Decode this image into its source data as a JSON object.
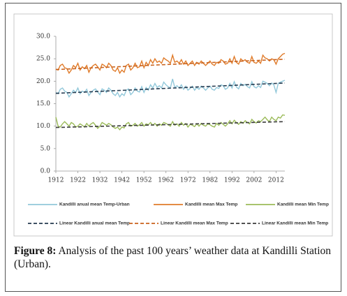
{
  "chart_data": {
    "type": "line",
    "x": [
      1912,
      1913,
      1914,
      1915,
      1916,
      1917,
      1918,
      1919,
      1920,
      1921,
      1922,
      1923,
      1924,
      1925,
      1926,
      1927,
      1928,
      1929,
      1930,
      1931,
      1932,
      1933,
      1934,
      1935,
      1936,
      1937,
      1938,
      1939,
      1940,
      1941,
      1942,
      1943,
      1944,
      1945,
      1946,
      1947,
      1948,
      1949,
      1950,
      1951,
      1952,
      1953,
      1954,
      1955,
      1956,
      1957,
      1958,
      1959,
      1960,
      1961,
      1962,
      1963,
      1964,
      1965,
      1966,
      1967,
      1968,
      1969,
      1970,
      1971,
      1972,
      1973,
      1974,
      1975,
      1976,
      1977,
      1978,
      1979,
      1980,
      1981,
      1982,
      1983,
      1984,
      1985,
      1986,
      1987,
      1988,
      1989,
      1990,
      1991,
      1992,
      1993,
      1994,
      1995,
      1996,
      1997,
      1998,
      1999,
      2000,
      2001,
      2002,
      2003,
      2004,
      2005,
      2006,
      2007,
      2008,
      2009,
      2010,
      2011,
      2012,
      2013,
      2014,
      2015,
      2016
    ],
    "series": [
      {
        "name": "Kandilli anual mean Temp-Urban",
        "color": "#92c8da",
        "values": [
          17.5,
          17.2,
          18.2,
          18.5,
          17.8,
          17.5,
          16.5,
          17.2,
          18.0,
          17.5,
          18.5,
          17.2,
          17.8,
          17.5,
          18.2,
          16.8,
          17.5,
          18.0,
          18.3,
          17.6,
          17.0,
          18.3,
          18.0,
          17.5,
          18.5,
          18.0,
          17.2,
          16.8,
          17.5,
          16.5,
          17.2,
          16.8,
          18.0,
          18.3,
          17.0,
          17.5,
          18.5,
          17.8,
          17.6,
          18.8,
          17.5,
          18.6,
          18.0,
          19.2,
          18.5,
          19.5,
          18.6,
          19.0,
          18.5,
          19.8,
          19.2,
          18.8,
          18.5,
          20.5,
          18.6,
          19.0,
          18.5,
          19.2,
          18.2,
          18.9,
          18.0,
          18.4,
          18.9,
          18.0,
          18.6,
          18.2,
          18.9,
          18.5,
          18.0,
          18.5,
          18.9,
          18.2,
          18.0,
          18.6,
          18.4,
          19.2,
          19.0,
          18.2,
          18.5,
          19.5,
          18.5,
          19.9,
          18.7,
          18.3,
          19.5,
          19.0,
          19.3,
          18.8,
          18.5,
          19.9,
          18.8,
          18.5,
          19.0,
          18.6,
          20.0,
          19.8,
          19.5,
          19.0,
          19.6,
          19.2,
          17.5,
          19.5,
          19.8,
          20.0,
          20.2
        ]
      },
      {
        "name": "Kandilli mean Max Temp",
        "color": "#e07b2a",
        "values": [
          22.7,
          22.5,
          23.5,
          23.8,
          23.0,
          22.8,
          21.8,
          22.5,
          23.5,
          23.0,
          24.0,
          22.5,
          23.2,
          22.8,
          23.5,
          22.0,
          23.0,
          23.5,
          23.8,
          23.2,
          22.5,
          23.8,
          23.5,
          23.0,
          24.0,
          23.5,
          22.5,
          22.2,
          23.0,
          21.8,
          22.5,
          22.0,
          23.5,
          23.8,
          22.5,
          23.0,
          24.0,
          23.0,
          23.2,
          24.5,
          23.0,
          24.2,
          23.5,
          24.8,
          24.0,
          25.0,
          24.2,
          24.5,
          24.0,
          25.2,
          24.8,
          24.5,
          24.0,
          25.8,
          24.2,
          24.5,
          24.0,
          24.8,
          23.8,
          24.5,
          23.5,
          24.0,
          24.5,
          23.5,
          24.2,
          23.8,
          24.5,
          24.0,
          23.5,
          24.0,
          24.5,
          23.8,
          23.5,
          24.2,
          24.0,
          24.8,
          24.5,
          23.8,
          24.0,
          25.0,
          24.0,
          25.5,
          24.2,
          23.8,
          25.0,
          24.5,
          24.8,
          24.2,
          24.0,
          25.5,
          24.2,
          24.0,
          24.5,
          24.0,
          25.8,
          25.2,
          25.0,
          24.5,
          25.0,
          24.8,
          23.8,
          25.0,
          25.5,
          26.0,
          26.2
        ]
      },
      {
        "name": "Kandilli mean Min Temp",
        "color": "#9bbb59",
        "values": [
          12.0,
          10.0,
          9.8,
          10.5,
          11.0,
          10.5,
          10.0,
          10.8,
          10.5,
          9.8,
          10.0,
          10.5,
          10.2,
          9.8,
          10.6,
          10.0,
          10.5,
          10.8,
          10.2,
          9.5,
          10.0,
          10.8,
          10.5,
          10.2,
          10.6,
          10.3,
          9.8,
          9.5,
          9.8,
          9.2,
          9.8,
          9.6,
          10.5,
          10.8,
          10.0,
          10.2,
          10.6,
          10.0,
          10.3,
          10.8,
          10.0,
          10.5,
          10.3,
          10.8,
          10.2,
          10.6,
          10.0,
          10.5,
          10.2,
          10.8,
          10.6,
          10.3,
          10.0,
          11.0,
          10.2,
          10.5,
          10.0,
          10.8,
          10.2,
          10.6,
          9.8,
          10.4,
          10.2,
          9.9,
          10.5,
          10.0,
          10.6,
          10.2,
          10.0,
          10.5,
          10.3,
          10.0,
          9.8,
          10.6,
          10.2,
          10.8,
          10.4,
          10.0,
          10.5,
          11.2,
          10.5,
          11.3,
          10.8,
          10.4,
          11.0,
          10.6,
          11.2,
          10.8,
          10.5,
          11.5,
          11.0,
          10.7,
          11.2,
          11.0,
          11.5,
          12.0,
          11.4,
          11.0,
          12.0,
          11.5,
          11.2,
          12.0,
          11.8,
          12.5,
          12.4
        ]
      },
      {
        "name": "Linear Kandilli anual mean Temp",
        "color": "#243a4f",
        "dashed": true,
        "x": [
          1912,
          2016
        ],
        "values": [
          17.3,
          19.6
        ]
      },
      {
        "name": "Linear Kandilli mean Max Temp",
        "color": "#c9621c",
        "dashed": true,
        "x": [
          1912,
          2016
        ],
        "values": [
          22.6,
          24.9
        ]
      },
      {
        "name": "Linear Kandilli mean Min Temp",
        "color": "#3b3b3b",
        "dashed": true,
        "x": [
          1912,
          2016
        ],
        "values": [
          9.7,
          11.0
        ]
      }
    ],
    "xlim": [
      1912,
      2016
    ],
    "xticks": [
      1912,
      1922,
      1932,
      1942,
      1952,
      1962,
      1972,
      1982,
      1992,
      2002,
      2012
    ],
    "ylim": [
      0,
      30
    ],
    "yticks": [
      {
        "value": 0,
        "label": "0.0"
      },
      {
        "value": 5,
        "label": "5.0"
      },
      {
        "value": 10,
        "label": "10.0"
      },
      {
        "value": 15,
        "label": "15.0"
      },
      {
        "value": 20,
        "label": "20.0"
      },
      {
        "value": 25,
        "label": "25.0"
      },
      {
        "value": 30,
        "label": "30.0"
      }
    ],
    "grid": false
  },
  "caption": {
    "label": "Figure 8:",
    "text": "Analysis of the past 100 years’ weather data at Kandilli Station (Urban)."
  }
}
